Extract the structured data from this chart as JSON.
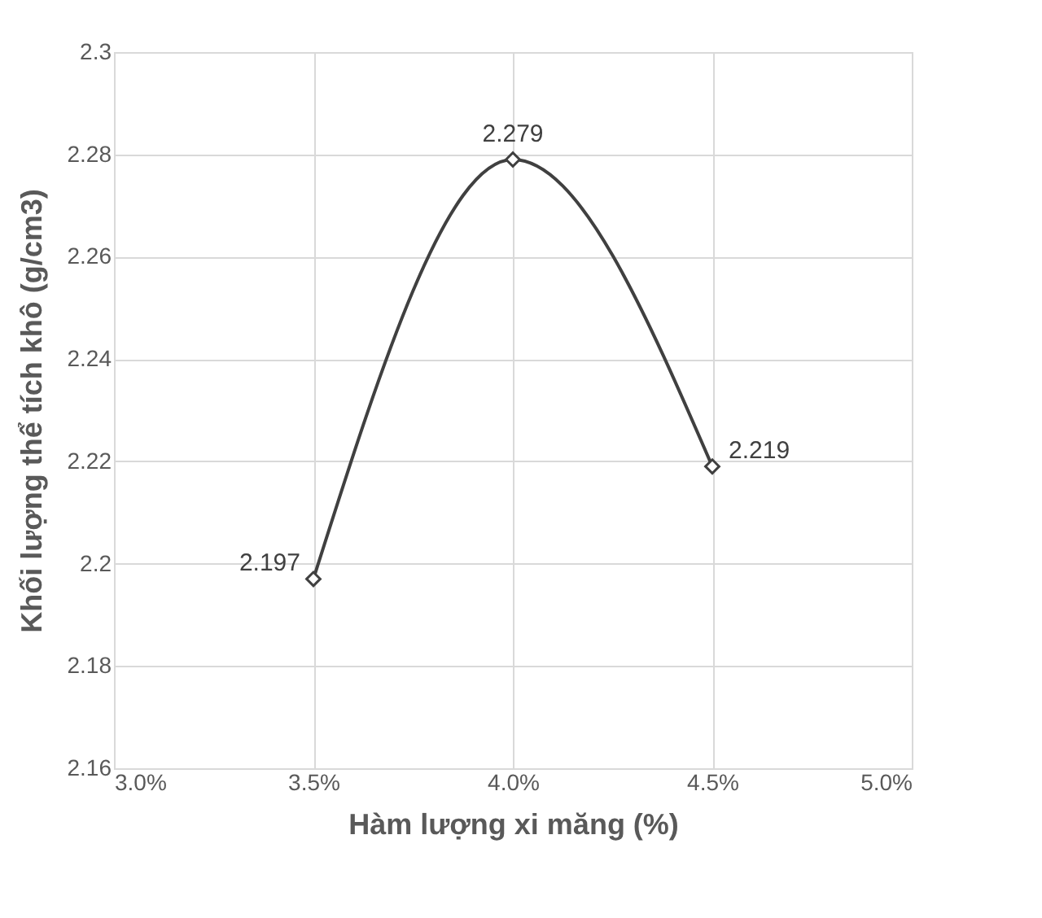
{
  "chart_data": {
    "type": "line",
    "xlabel": "Hàm lượng xi măng (%)",
    "ylabel": "Khối lượng thể tích khô (g/cm3)",
    "x": [
      3.5,
      4.0,
      4.5
    ],
    "series": [
      {
        "color": "#404040",
        "values": [
          2.197,
          2.279,
          2.219
        ]
      }
    ],
    "xlim": [
      3.0,
      5.0
    ],
    "xticks": [
      {
        "value": 3.0,
        "label": "3.0%"
      },
      {
        "value": 3.5,
        "label": "3.5%"
      },
      {
        "value": 4.0,
        "label": "4.0%"
      },
      {
        "value": 4.5,
        "label": "4.5%"
      },
      {
        "value": 5.0,
        "label": "5.0%"
      }
    ],
    "ylim": [
      2.16,
      2.3
    ],
    "yticks": [
      2.16,
      2.18,
      2.2,
      2.22,
      2.24,
      2.26,
      2.28,
      2.3
    ],
    "grid": true,
    "marker": "diamond",
    "line_style": "solid",
    "data_labels": true
  }
}
